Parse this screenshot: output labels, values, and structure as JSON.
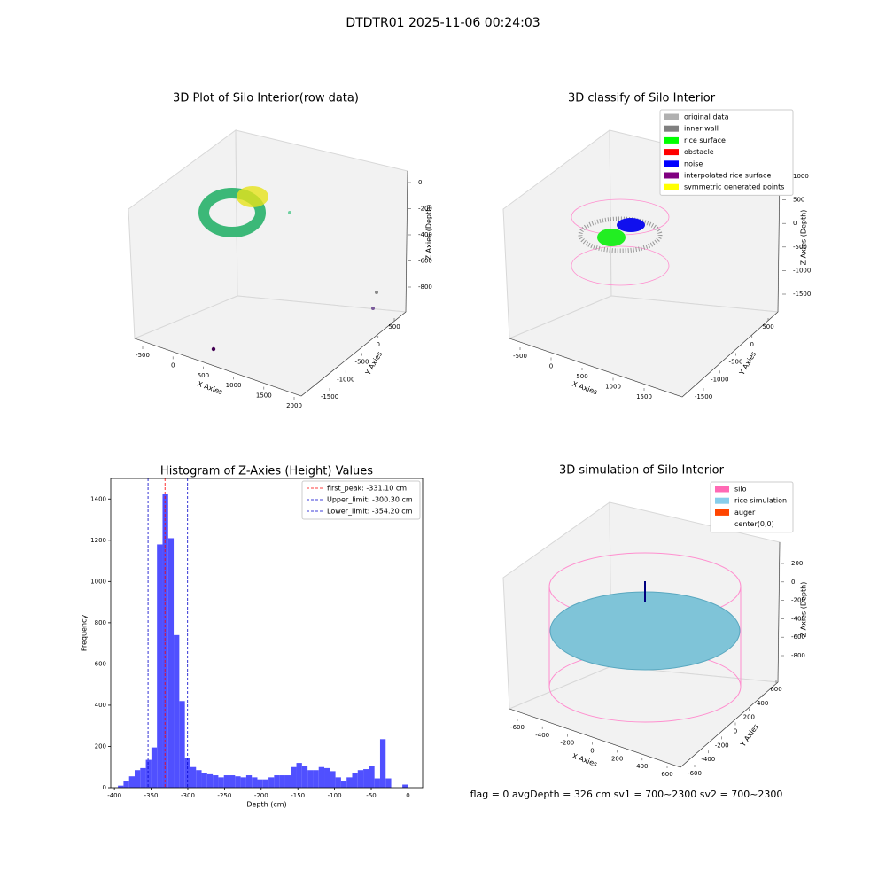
{
  "suptitle": "DTDTR01 2025-11-06 00:24:03",
  "status": "flag = 0     avgDepth = 326 cm  sv1 = 700~2300  sv2 = 700~2300",
  "chart_data": [
    {
      "type": "scatter3d",
      "title": "3D Plot of Silo Interior(row data)",
      "xlabel": "X Axies",
      "ylabel": "Y Axies",
      "zlabel": "Z Axies (Depth)",
      "xticks": [
        -500,
        0,
        500,
        1000,
        1500,
        2000
      ],
      "yticks": [
        500,
        0,
        -500,
        -1000,
        -1500
      ],
      "zticks": [
        0,
        -200,
        -400,
        -600,
        -800
      ]
    },
    {
      "type": "scatter3d",
      "title": "3D classify of Silo Interior",
      "xlabel": "X Axies",
      "ylabel": "Y Axies",
      "zlabel": "Z Axies (Depth)",
      "xticks": [
        -500,
        0,
        500,
        1000,
        1500
      ],
      "yticks": [
        500,
        0,
        -500,
        -1000,
        -1500
      ],
      "zticks": [
        1000,
        500,
        0,
        -500,
        -1000,
        -1500
      ],
      "legend": [
        {
          "name": "original data",
          "color": "#b0b0b0"
        },
        {
          "name": "inner wall",
          "color": "#808080"
        },
        {
          "name": "rice surface",
          "color": "#00ff00"
        },
        {
          "name": "obstacle",
          "color": "#ff0000"
        },
        {
          "name": "noise",
          "color": "#0000ff"
        },
        {
          "name": "interpolated rice surface",
          "color": "#800080"
        },
        {
          "name": "symmetric generated points",
          "color": "#ffff00"
        }
      ]
    },
    {
      "type": "histogram",
      "title": "Histogram of Z-Axies (Height) Values",
      "xlabel": "Depth (cm)",
      "ylabel": "Frequency",
      "color": "#5050ff",
      "bins": [
        -395.2,
        -387.6,
        -380,
        -372.4,
        -364.8,
        -357.2,
        -349.6,
        -342,
        -334.4,
        -326.8,
        -319.2,
        -311.6,
        -304,
        -296.4,
        -288.8,
        -281.2,
        -273.6,
        -266,
        -258.4,
        -250.8,
        -243.2,
        -235.6,
        -228,
        -220.4,
        -212.8,
        -205.2,
        -197.6,
        -190,
        -182.4,
        -174.8,
        -167.2,
        -159.6,
        -152,
        -144.4,
        -136.8,
        -129.2,
        -121.6,
        -114,
        -106.4,
        -98.8,
        -91.2,
        -83.6,
        -76,
        -68.4,
        -60.8,
        -53.2,
        -45.6,
        -38,
        -30.4,
        -22.8,
        -15.2,
        -7.6,
        0
      ],
      "counts": [
        10,
        30,
        55,
        85,
        95,
        135,
        195,
        1180,
        1425,
        1210,
        740,
        420,
        145,
        100,
        85,
        70,
        65,
        60,
        50,
        60,
        60,
        55,
        50,
        60,
        50,
        40,
        40,
        50,
        60,
        60,
        60,
        100,
        120,
        105,
        85,
        85,
        100,
        95,
        80,
        50,
        30,
        50,
        70,
        85,
        90,
        105,
        45,
        235,
        45,
        0,
        0,
        15
      ],
      "xlim": [
        -405,
        20
      ],
      "ylim": [
        0,
        1500
      ],
      "xticks": [
        -400,
        -350,
        -300,
        -250,
        -200,
        -150,
        -100,
        -50,
        0
      ],
      "yticks": [
        0,
        200,
        400,
        600,
        800,
        1000,
        1200,
        1400
      ],
      "lines": [
        {
          "value": -331.1,
          "label": "first_peak: -331.10 cm",
          "color": "#ff0000"
        },
        {
          "value": -300.3,
          "label": "Upper_limit: -300.30 cm",
          "color": "#0000cc"
        },
        {
          "value": -354.2,
          "label": "Lower_limit: -354.20 cm",
          "color": "#0000cc"
        }
      ]
    },
    {
      "type": "scatter3d",
      "title": "3D simulation of Silo Interior",
      "xlabel": "X Axies",
      "ylabel": "Y Axies",
      "zlabel": "Z Axies (Depth)",
      "xticks": [
        -600,
        -400,
        -200,
        0,
        200,
        400,
        600
      ],
      "yticks": [
        600,
        400,
        200,
        0,
        -200,
        -400,
        -600
      ],
      "zticks": [
        200,
        0,
        -200,
        -400,
        -600,
        -800
      ],
      "legend": [
        {
          "name": "silo",
          "color": "#ff69b4"
        },
        {
          "name": "rice simulation",
          "color": "#87ceeb"
        },
        {
          "name": "auger",
          "color": "#ff4500"
        },
        {
          "name": "center(0,0)",
          "color": "#ffffff"
        }
      ]
    }
  ]
}
